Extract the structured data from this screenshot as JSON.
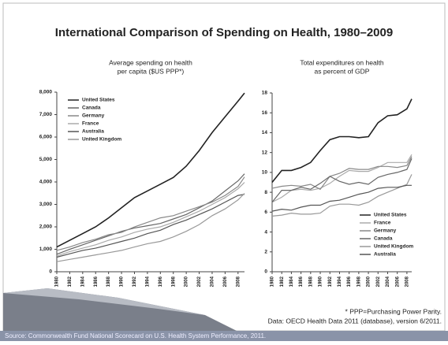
{
  "slide": {
    "title": "International Comparison of Spending on Health, 1980–2009",
    "footnote": "* PPP=Purchasing Power Parity.",
    "data_note": "Data: OECD Health Data 2011 (database), version 6/2011.",
    "source": "Source: Commonwealth Fund National Scorecard on U.S. Health System Performance, 2011."
  },
  "chart_data": [
    {
      "type": "line",
      "title": [
        "Average spending on health",
        "per capita ($US PPP*)"
      ],
      "x": [
        1980,
        1982,
        1984,
        1986,
        1988,
        1990,
        1992,
        1994,
        1996,
        1998,
        2000,
        2002,
        2004,
        2006,
        2008,
        2009
      ],
      "xlim": [
        1980,
        2009
      ],
      "xticks": [
        1980,
        1982,
        1984,
        1986,
        1988,
        1990,
        1992,
        1994,
        1996,
        1998,
        2000,
        2002,
        2004,
        2006,
        2008
      ],
      "ylim": [
        0,
        8000
      ],
      "yticks": [
        0,
        {
          "value": 1000,
          "label": "1,000"
        },
        {
          "value": 2000,
          "label": "2,000"
        },
        {
          "value": 3000,
          "label": "3,000"
        },
        {
          "value": 4000,
          "label": "4,000"
        },
        {
          "value": 5000,
          "label": "5,000"
        },
        {
          "value": 6000,
          "label": "6,000"
        },
        {
          "value": 7000,
          "label": "7,000"
        },
        {
          "value": 8000,
          "label": "8,000"
        }
      ],
      "legend": "upper left",
      "series": [
        {
          "name": "United States",
          "color": "#222222",
          "values": [
            1100,
            1400,
            1700,
            2000,
            2400,
            2850,
            3300,
            3600,
            3900,
            4200,
            4700,
            5400,
            6200,
            6900,
            7600,
            7960
          ]
        },
        {
          "name": "Canada",
          "color": "#666666",
          "values": [
            780,
            1000,
            1200,
            1400,
            1600,
            1800,
            1950,
            2050,
            2150,
            2350,
            2550,
            2850,
            3150,
            3600,
            4050,
            4360
          ]
        },
        {
          "name": "Germany",
          "color": "#888888",
          "values": [
            950,
            1100,
            1300,
            1450,
            1650,
            1750,
            2000,
            2200,
            2400,
            2500,
            2700,
            2900,
            3100,
            3400,
            3800,
            4220
          ]
        },
        {
          "name": "France",
          "color": "#aaaaaa",
          "values": [
            700,
            900,
            1050,
            1200,
            1400,
            1550,
            1750,
            1900,
            2000,
            2200,
            2450,
            2700,
            3000,
            3300,
            3700,
            3980
          ]
        },
        {
          "name": "Australia",
          "color": "#555555",
          "values": [
            650,
            800,
            950,
            1050,
            1200,
            1350,
            1500,
            1700,
            1850,
            2100,
            2300,
            2550,
            2800,
            3100,
            3400,
            3450
          ]
        },
        {
          "name": "United Kingdom",
          "color": "#999999",
          "values": [
            450,
            550,
            650,
            750,
            850,
            950,
            1100,
            1250,
            1350,
            1550,
            1800,
            2100,
            2500,
            2800,
            3200,
            3490
          ]
        }
      ]
    },
    {
      "type": "line",
      "title": [
        "Total expenditures on health",
        "as percent of GDP"
      ],
      "x": [
        1980,
        1982,
        1984,
        1986,
        1988,
        1990,
        1992,
        1994,
        1996,
        1998,
        2000,
        2002,
        2004,
        2006,
        2008,
        2009
      ],
      "xlim": [
        1980,
        2009
      ],
      "xticks": [
        1980,
        1982,
        1984,
        1986,
        1988,
        1990,
        1992,
        1994,
        1996,
        1998,
        2000,
        2002,
        2004,
        2006,
        2008
      ],
      "ylim": [
        0,
        18
      ],
      "yticks": [
        0,
        2,
        4,
        6,
        8,
        10,
        12,
        14,
        16,
        18
      ],
      "legend": "lower right",
      "series": [
        {
          "name": "United States",
          "color": "#222222",
          "values": [
            9.0,
            10.2,
            10.2,
            10.5,
            11.0,
            12.2,
            13.3,
            13.6,
            13.6,
            13.5,
            13.6,
            15.0,
            15.7,
            15.8,
            16.4,
            17.4
          ]
        },
        {
          "name": "France",
          "color": "#aaaaaa",
          "values": [
            7.0,
            7.5,
            8.2,
            8.3,
            8.2,
            8.4,
            8.9,
            9.6,
            10.2,
            10.1,
            10.1,
            10.5,
            11.0,
            11.0,
            11.0,
            11.8
          ]
        },
        {
          "name": "Germany",
          "color": "#888888",
          "values": [
            8.4,
            8.6,
            8.7,
            8.6,
            8.8,
            8.3,
            9.6,
            9.9,
            10.4,
            10.3,
            10.3,
            10.6,
            10.6,
            10.5,
            10.7,
            11.6
          ]
        },
        {
          "name": "Canada",
          "color": "#666666",
          "values": [
            7.0,
            8.2,
            8.2,
            8.5,
            8.3,
            8.9,
            9.6,
            9.1,
            8.8,
            9.0,
            8.8,
            9.5,
            9.8,
            10.0,
            10.3,
            11.4
          ]
        },
        {
          "name": "United Kingdom",
          "color": "#999999",
          "values": [
            5.6,
            5.7,
            5.9,
            5.8,
            5.8,
            5.9,
            6.6,
            6.8,
            6.8,
            6.7,
            7.0,
            7.6,
            8.0,
            8.4,
            8.8,
            9.8
          ]
        },
        {
          "name": "Australia",
          "color": "#555555",
          "values": [
            6.1,
            6.3,
            6.2,
            6.5,
            6.7,
            6.7,
            7.1,
            7.2,
            7.5,
            7.8,
            8.0,
            8.4,
            8.5,
            8.5,
            8.7,
            8.7
          ]
        }
      ]
    }
  ]
}
